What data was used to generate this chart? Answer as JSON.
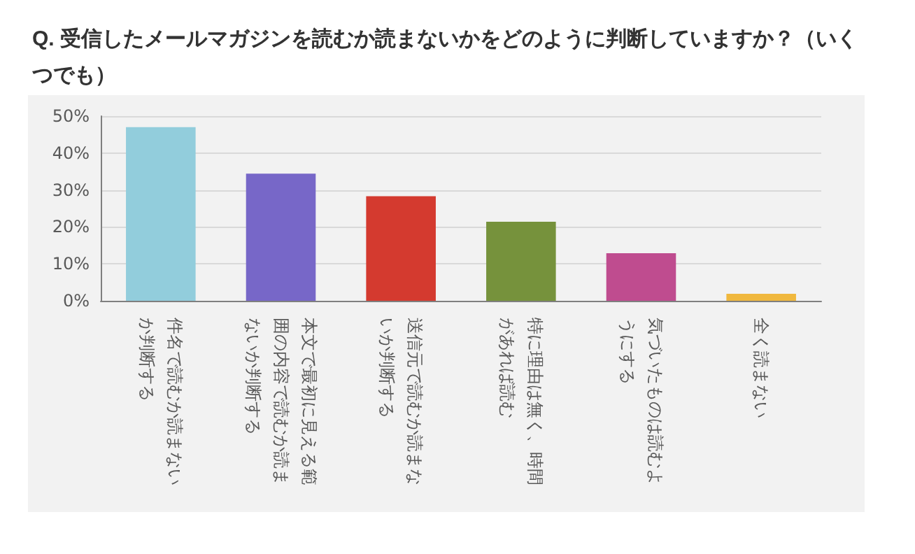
{
  "chart_data": {
    "type": "bar",
    "title": "Q. 受信したメールマガジンを読むか読まないかをどのように判断していますか？（いくつでも）",
    "categories": [
      "件名で読むか読まないか判断する",
      "本文で最初に見える範囲の内容で読むか読まないか判断する",
      "送信元で読むか読まないか判断する",
      "特に理由は無く、時間があれば読む",
      "気づいたものは読むようにする",
      "全く読まない"
    ],
    "values": [
      47.0,
      34.4,
      28.3,
      21.4,
      12.9,
      1.9
    ],
    "colors": [
      "#92cddc",
      "#7767c8",
      "#d43a2f",
      "#76923c",
      "#bf4c8f",
      "#f0b83e"
    ],
    "ylim": [
      0,
      50
    ],
    "yticks": [
      {
        "value": 0,
        "label": "0%"
      },
      {
        "value": 10,
        "label": "10%"
      },
      {
        "value": 20,
        "label": "20%"
      },
      {
        "value": 30,
        "label": "30%"
      },
      {
        "value": 40,
        "label": "40%"
      },
      {
        "value": 50,
        "label": "50%"
      }
    ],
    "grid": "y"
  }
}
